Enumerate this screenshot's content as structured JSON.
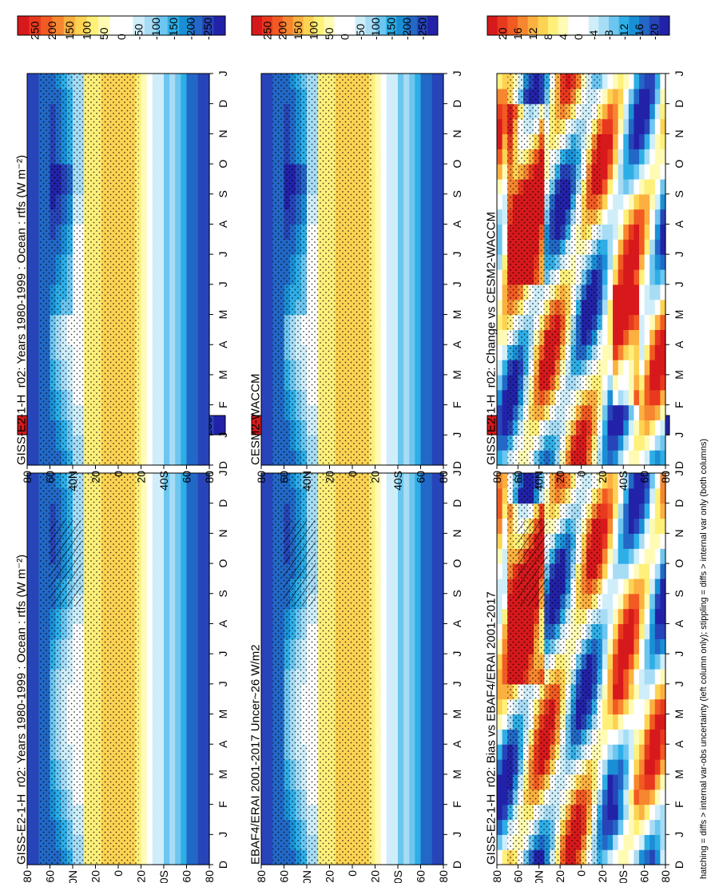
{
  "footnote": "hatching = diffs > internal var-obs uncertainty (left column only); stippling = diffs > internal var only (both columns)",
  "colors": {
    "abs": [
      "#d7191c",
      "#e8391f",
      "#f15a22",
      "#f6862f",
      "#fbb040",
      "#fdd353",
      "#fff07a",
      "#fffbb5",
      "#ffffff",
      "#ffffff",
      "#cfeefa",
      "#a7dcf5",
      "#6cc6f0",
      "#2eaee6",
      "#1a8fd6",
      "#2268c7",
      "#2744b8",
      "#2222a8"
    ],
    "diff": [
      "#d7191c",
      "#e8391f",
      "#f15a22",
      "#f6862f",
      "#fbb040",
      "#fdd353",
      "#fff07a",
      "#fffbb5",
      "#ffffff",
      "#ffffff",
      "#cfeefa",
      "#a7dcf5",
      "#6cc6f0",
      "#2eaee6",
      "#1a8fd6",
      "#2268c7",
      "#2744b8",
      "#2222a8"
    ]
  },
  "chart_data": [
    {
      "id": "panel-model-left",
      "type": "heatmap",
      "title": "GISS-E2-1-H_r02: Years 1980-1999 : Ocean : rtfs (W m⁻²)",
      "months": [
        "D",
        "J",
        "F",
        "M",
        "A",
        "M",
        "J",
        "J",
        "A",
        "S",
        "O",
        "N",
        "D",
        "J"
      ],
      "lat_ticks": [
        "80",
        "60",
        "40N",
        "20",
        "0",
        "20",
        "40S",
        "60",
        "80"
      ],
      "colorbar_ticks": [
        "250",
        "200",
        "150",
        "100",
        "50",
        "0",
        "-50",
        "-100",
        "-150",
        "-200",
        "-250"
      ],
      "scale": "abs",
      "zlim": [
        -270,
        270
      ],
      "hatching": true,
      "stippling": true
    },
    {
      "id": "panel-model-right",
      "type": "heatmap",
      "title": "GISS-E2-1-H_r02: Years 1980-1999 : Ocean : rtfs (W m⁻²)",
      "months": [
        "D",
        "J",
        "F",
        "M",
        "A",
        "M",
        "J",
        "J",
        "A",
        "S",
        "O",
        "N",
        "D",
        "J"
      ],
      "lat_ticks": [
        "80",
        "60",
        "40N",
        "20",
        "0",
        "20",
        "40S",
        "60",
        "80"
      ],
      "colorbar_ticks": [
        "250",
        "200",
        "150",
        "100",
        "50",
        "0",
        "-50",
        "-100",
        "-150",
        "-200",
        "-250"
      ],
      "scale": "abs",
      "zlim": [
        -270,
        270
      ],
      "hatching": false,
      "stippling": true
    },
    {
      "id": "panel-obs",
      "type": "heatmap",
      "title": "EBAF4/ERAI 2001-2017 Uncer~26 W/m2",
      "months": [
        "D",
        "J",
        "F",
        "M",
        "A",
        "M",
        "J",
        "J",
        "A",
        "S",
        "O",
        "N",
        "D",
        "J"
      ],
      "lat_ticks": [
        "80",
        "60",
        "40N",
        "20",
        "0",
        "20",
        "40S",
        "60",
        "80"
      ],
      "colorbar_ticks": [
        "250",
        "200",
        "150",
        "100",
        "50",
        "0",
        "-50",
        "-100",
        "-150",
        "-200",
        "-250"
      ],
      "scale": "abs",
      "zlim": [
        -270,
        270
      ],
      "hatching": true,
      "stippling": true
    },
    {
      "id": "panel-cesm",
      "type": "heatmap",
      "title": "CESM2-WACCM",
      "months": [
        "D",
        "J",
        "F",
        "M",
        "A",
        "M",
        "J",
        "J",
        "A",
        "S",
        "O",
        "N",
        "D",
        "J"
      ],
      "lat_ticks": [
        "80",
        "60",
        "40N",
        "20",
        "0",
        "20",
        "40S",
        "60",
        "80"
      ],
      "colorbar_ticks": [
        "250",
        "200",
        "150",
        "100",
        "50",
        "0",
        "-50",
        "-100",
        "-150",
        "-200",
        "-250"
      ],
      "scale": "abs",
      "zlim": [
        -270,
        270
      ],
      "hatching": false,
      "stippling": true
    },
    {
      "id": "panel-bias",
      "type": "heatmap",
      "title": "GISS-E2-1-H_r02: Bias vs EBAF4/ERAI 2001-2017",
      "months": [
        "D",
        "J",
        "F",
        "M",
        "A",
        "M",
        "J",
        "J",
        "A",
        "S",
        "O",
        "N",
        "D",
        "J"
      ],
      "lat_ticks": [
        "80",
        "60",
        "40N",
        "20",
        "0",
        "20",
        "40S",
        "60",
        "80"
      ],
      "colorbar_ticks": [
        "20",
        "16",
        "12",
        "8",
        "4",
        "0",
        "-4",
        "-8",
        "-12",
        "-16",
        "-20"
      ],
      "scale": "diff",
      "zlim": [
        -22,
        22
      ],
      "hatching": true,
      "stippling": true
    },
    {
      "id": "panel-change",
      "type": "heatmap",
      "title": "GISS-E2-1-H_r02: Change vs CESM2-WACCM",
      "months": [
        "D",
        "J",
        "F",
        "M",
        "A",
        "M",
        "J",
        "J",
        "A",
        "S",
        "O",
        "N",
        "D",
        "J"
      ],
      "lat_ticks": [
        "80",
        "60",
        "40N",
        "20",
        "0",
        "20",
        "40S",
        "60",
        "80"
      ],
      "colorbar_ticks": [
        "20",
        "16",
        "12",
        "8",
        "4",
        "0",
        "-4",
        "-8",
        "-12",
        "-16",
        "-20"
      ],
      "scale": "diff",
      "zlim": [
        -22,
        22
      ],
      "hatching": false,
      "stippling": true
    }
  ]
}
